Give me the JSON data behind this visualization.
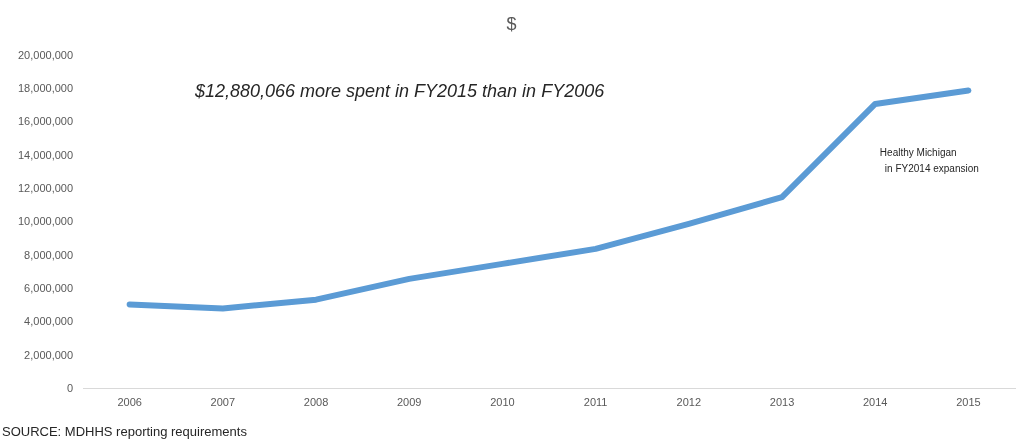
{
  "chart_data": {
    "type": "line",
    "title": "$",
    "categories": [
      "2006",
      "2007",
      "2008",
      "2009",
      "2010",
      "2011",
      "2012",
      "2013",
      "2014",
      "2015"
    ],
    "series": [
      {
        "color": "#5b9bd5",
        "values": [
          5060000,
          4820000,
          5350000,
          6600000,
          7500000,
          8400000,
          9900000,
          11500000,
          17100000,
          17900000
        ]
      }
    ],
    "ylim": [
      0,
      20000000
    ],
    "yticks": [
      0,
      {
        "value": 2000000,
        "label": "2,000,000"
      },
      {
        "value": 4000000,
        "label": "4,000,000"
      },
      {
        "value": 6000000,
        "label": "6,000,000"
      },
      {
        "value": 8000000,
        "label": "8,000,000"
      },
      {
        "value": 10000000,
        "label": "10,000,000"
      },
      {
        "value": 12000000,
        "label": "12,000,000"
      },
      {
        "value": 14000000,
        "label": "14,000,000"
      },
      {
        "value": 16000000,
        "label": "16,000,000"
      },
      {
        "value": 18000000,
        "label": "18,000,000"
      },
      {
        "value": 20000000,
        "label": "20,000,000"
      }
    ],
    "grid": false,
    "legend": false,
    "marker": "none",
    "line_style": "solid",
    "annotations": [
      "$12,880,066 more spent in FY2015 than in FY2006",
      "Healthy Michigan\nin FY2014 expansion",
      "SOURCE: MDHHS reporting requirements"
    ]
  }
}
